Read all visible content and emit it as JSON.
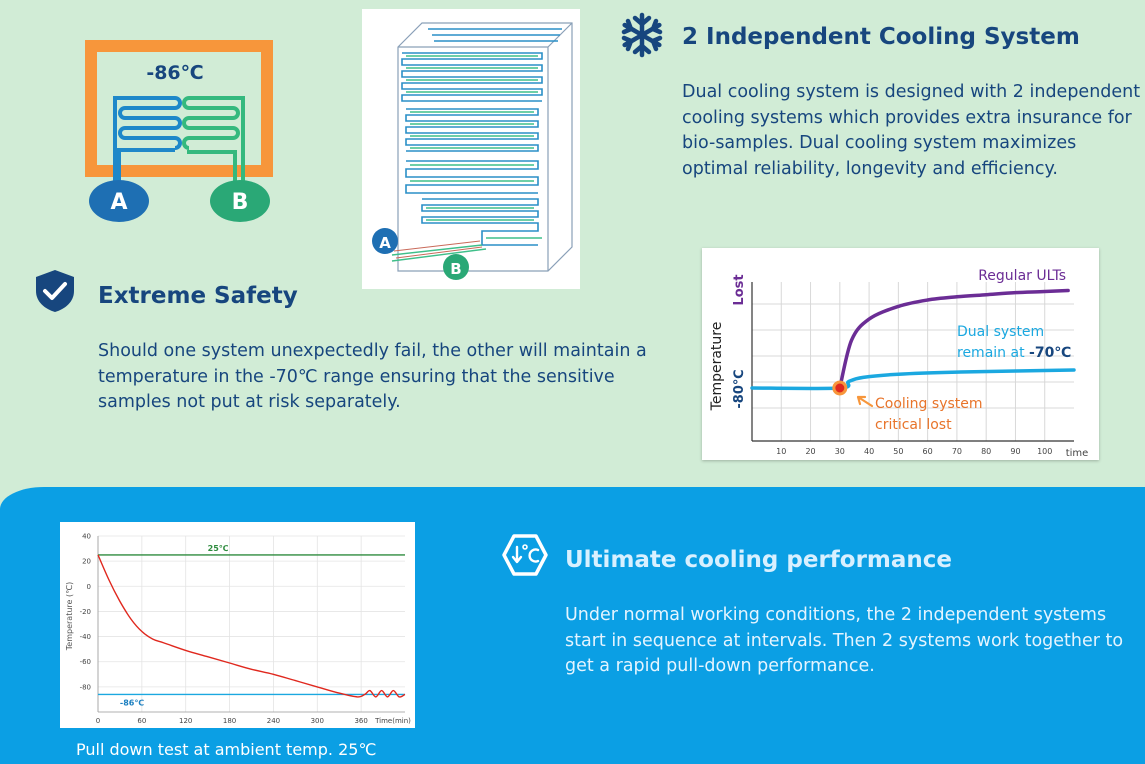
{
  "top_section": {
    "diagram_small": {
      "temperature": "-86℃",
      "label_a": "A",
      "label_b": "B"
    },
    "diagram_cabinet": {
      "label_a": "A",
      "label_b": "B"
    },
    "cooling": {
      "icon": "snowflake-icon",
      "title": "2 Independent Cooling System",
      "description": "Dual cooling system is designed with 2 independent cooling systems which provides extra insurance for bio-samples. Dual cooling system maximizes optimal reliability, longevity and efficiency."
    },
    "safety": {
      "icon": "shield-check-icon",
      "title": "Extreme Safety",
      "description": "Should one system unexpectedly fail, the other will maintain a temperature in the -70℃ range ensuring that the sensitive samples not put at risk separately."
    }
  },
  "bottom_section": {
    "performance": {
      "icon": "temperature-down-icon",
      "title": "Ultimate cooling performance",
      "description": "Under normal working conditions, the 2 independent systems start in sequence at intervals. Then 2 systems work together to get a rapid pull-down performance."
    },
    "caption": "Pull down test at ambient temp. 25℃"
  },
  "colors": {
    "orange": "#f7963b",
    "blue_loop": "#1e88c9",
    "green_loop": "#34b97e",
    "purple": "#6b2d95",
    "cyan": "#1ba8e0",
    "red": "#e0281e"
  },
  "chart_data": [
    {
      "type": "line",
      "ylabel": "Temperature",
      "y_tick_labels": [
        "Lost",
        "-80℃"
      ],
      "xlabel": "time",
      "x_ticks": [
        10,
        20,
        30,
        40,
        50,
        60,
        70,
        80,
        90,
        100
      ],
      "xlim": [
        0,
        110
      ],
      "grid": true,
      "series": [
        {
          "name": "Regular ULTs",
          "color": "#6b2d95",
          "points": [
            [
              30,
              0
            ],
            [
              34,
              0.45
            ],
            [
              40,
              0.65
            ],
            [
              50,
              0.77
            ],
            [
              60,
              0.83
            ],
            [
              70,
              0.86
            ],
            [
              80,
              0.88
            ],
            [
              90,
              0.9
            ],
            [
              100,
              0.91
            ],
            [
              108,
              0.92
            ]
          ]
        },
        {
          "name": "Dual system remain at -70℃",
          "color": "#1ba8e0",
          "points": [
            [
              0,
              0
            ],
            [
              30,
              0
            ],
            [
              33,
              0.06
            ],
            [
              38,
              0.1
            ],
            [
              50,
              0.13
            ],
            [
              70,
              0.15
            ],
            [
              90,
              0.16
            ],
            [
              110,
              0.17
            ]
          ]
        }
      ],
      "annotations": {
        "regular": "Regular ULTs",
        "dual_line1": "Dual system",
        "dual_line2_prefix": "remain at ",
        "dual_line2_value": "-70℃",
        "failure_line1": "Cooling system",
        "failure_line2": "critical lost"
      }
    },
    {
      "type": "line",
      "ylabel": "Temperature (℃)",
      "xlabel": "Time(min)",
      "ylim": [
        -100,
        40
      ],
      "xlim": [
        0,
        420
      ],
      "y_ticks": [
        40,
        20,
        0,
        -20,
        -40,
        -60,
        -80
      ],
      "x_ticks": [
        0,
        60,
        120,
        180,
        240,
        300,
        360
      ],
      "grid": true,
      "series": [
        {
          "name": "25℃",
          "color": "#2e8b3e",
          "points": [
            [
              0,
              25
            ],
            [
              420,
              25
            ]
          ]
        },
        {
          "name": "-86℃",
          "color": "#1ba8e0",
          "points": [
            [
              0,
              -86
            ],
            [
              420,
              -86
            ]
          ]
        },
        {
          "name": "pull-down",
          "color": "#e0281e",
          "points": [
            [
              0,
              25
            ],
            [
              15,
              5
            ],
            [
              30,
              -12
            ],
            [
              45,
              -26
            ],
            [
              60,
              -36
            ],
            [
              75,
              -42
            ],
            [
              90,
              -45
            ],
            [
              120,
              -51
            ],
            [
              150,
              -56
            ],
            [
              180,
              -61
            ],
            [
              210,
              -66
            ],
            [
              240,
              -70
            ],
            [
              270,
              -75
            ],
            [
              300,
              -80
            ],
            [
              330,
              -85
            ],
            [
              355,
              -88
            ],
            [
              365,
              -86
            ],
            [
              372,
              -83
            ],
            [
              380,
              -88
            ],
            [
              388,
              -83
            ],
            [
              396,
              -88
            ],
            [
              404,
              -83
            ],
            [
              412,
              -88
            ],
            [
              420,
              -86
            ]
          ]
        }
      ],
      "labels": {
        "top_line": "25℃",
        "bottom_line": "-86℃"
      }
    }
  ]
}
